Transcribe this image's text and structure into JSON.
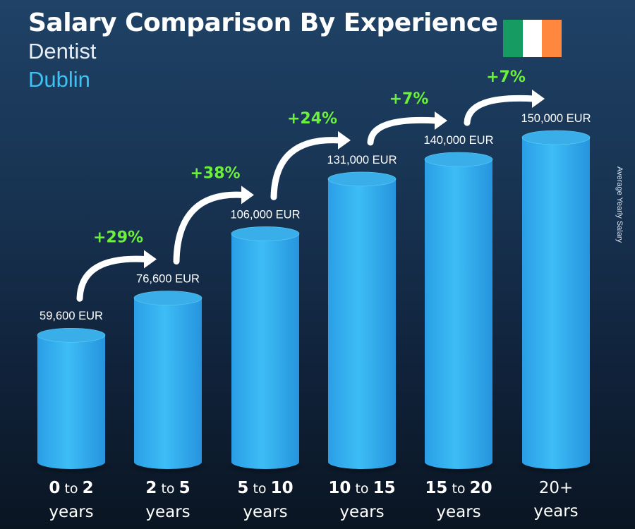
{
  "header": {
    "title": "Salary Comparison By Experience",
    "job": "Dentist",
    "city": "Dublin"
  },
  "flag": {
    "colors": [
      "#169b62",
      "#ffffff",
      "#ff883e"
    ]
  },
  "side_label": "Average Yearly Salary",
  "categories": [
    {
      "from": "0",
      "to_word": "to",
      "to": "2",
      "unit": "years"
    },
    {
      "from": "2",
      "to_word": "to",
      "to": "5",
      "unit": "years"
    },
    {
      "from": "5",
      "to_word": "to",
      "to": "10",
      "unit": "years"
    },
    {
      "from": "10",
      "to_word": "to",
      "to": "15",
      "unit": "years"
    },
    {
      "from": "15",
      "to_word": "to",
      "to": "20",
      "unit": "years"
    },
    {
      "from": "20+",
      "to_word": "",
      "to": "",
      "unit": "years"
    }
  ],
  "chart_data": {
    "type": "bar",
    "title": "Salary Comparison By Experience",
    "categories": [
      "0 to 2 years",
      "2 to 5 years",
      "5 to 10 years",
      "10 to 15 years",
      "15 to 20 years",
      "20+ years"
    ],
    "values": [
      59600,
      76600,
      106000,
      131000,
      140000,
      150000
    ],
    "value_labels": [
      "59,600 EUR",
      "76,600 EUR",
      "106,000 EUR",
      "131,000 EUR",
      "140,000 EUR",
      "150,000 EUR"
    ],
    "growth_labels": [
      "+29%",
      "+38%",
      "+24%",
      "+7%",
      "+7%"
    ],
    "ylabel": "Average Yearly Salary",
    "unit": "EUR",
    "ylim": [
      0,
      150000
    ],
    "grid": false,
    "colors": {
      "bar": "#38b6f0",
      "bar_dark": "#1f8fd4",
      "bar_top": "#3aaee8",
      "growth": "#6cf13a",
      "label": "#ffffff"
    }
  }
}
